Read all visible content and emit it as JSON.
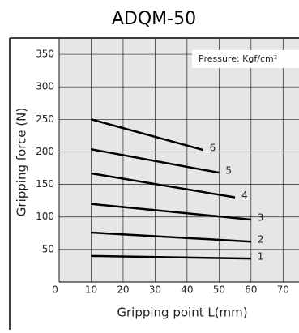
{
  "chart_data": {
    "type": "line",
    "title": "ADQM-50",
    "xlabel": "Gripping point  L(mm)",
    "ylabel": "Gripping force (N)",
    "annotation": "Pressure: Kgf/cm²",
    "series": [
      {
        "name": "1",
        "color": "#000000",
        "x": [
          10,
          60
        ],
        "values": [
          40,
          36
        ]
      },
      {
        "name": "2",
        "color": "#000000",
        "x": [
          10,
          60
        ],
        "values": [
          76,
          62
        ]
      },
      {
        "name": "3",
        "color": "#000000",
        "x": [
          10,
          60
        ],
        "values": [
          120,
          96
        ]
      },
      {
        "name": "4",
        "color": "#000000",
        "x": [
          10,
          55
        ],
        "values": [
          167,
          130
        ]
      },
      {
        "name": "5",
        "color": "#000000",
        "x": [
          10,
          50
        ],
        "values": [
          204,
          168
        ]
      },
      {
        "name": "6",
        "color": "#000000",
        "x": [
          10,
          45
        ],
        "values": [
          250,
          203
        ]
      }
    ],
    "xlim": [
      0,
      75
    ],
    "xticks": [
      0,
      10,
      20,
      30,
      40,
      50,
      60,
      70
    ],
    "ylim": [
      0,
      375
    ],
    "yticks": [
      50,
      100,
      150,
      200,
      250,
      300,
      350
    ],
    "grid": true
  }
}
